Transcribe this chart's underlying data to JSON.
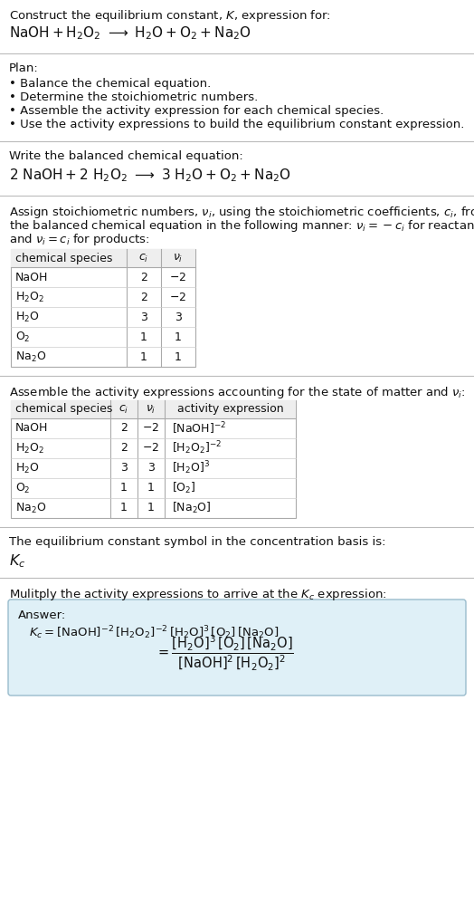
{
  "bg_color": "#ffffff",
  "text_color": "#111111",
  "separator_color": "#bbbbbb",
  "table_header_bg": "#eeeeee",
  "table_border_color": "#aaaaaa",
  "table_row_line_color": "#cccccc",
  "answer_box_bg": "#dff0f7",
  "answer_box_border": "#99bbcc",
  "font_size": 9.5,
  "small_font_size": 9.0,
  "table1_species": [
    "NaOH",
    "$\\mathrm{H_2O_2}$",
    "$\\mathrm{H_2O}$",
    "$\\mathrm{O_2}$",
    "$\\mathrm{Na_2O}$"
  ],
  "table1_ci": [
    "2",
    "2",
    "3",
    "1",
    "1"
  ],
  "table1_vi": [
    "$-2$",
    "$-2$",
    "3",
    "1",
    "1"
  ],
  "table2_activity": [
    "$[\\mathrm{NaOH}]^{-2}$",
    "$[\\mathrm{H_2O_2}]^{-2}$",
    "$[\\mathrm{H_2O}]^3$",
    "$[\\mathrm{O_2}]$",
    "$[\\mathrm{Na_2O}]$"
  ]
}
